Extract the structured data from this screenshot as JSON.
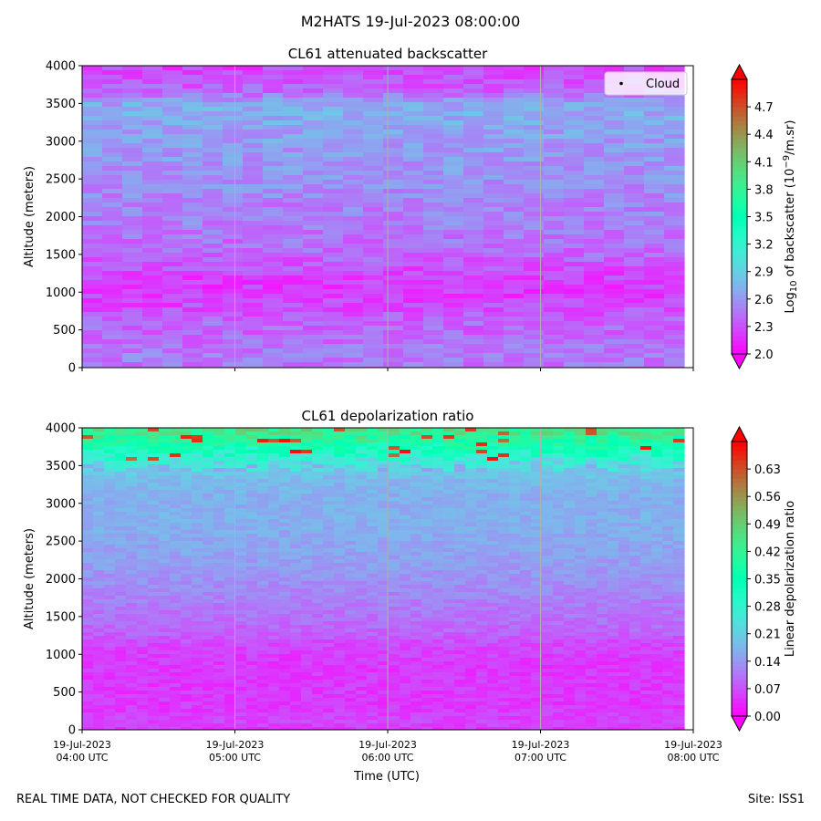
{
  "suptitle": "M2HATS 19-Jul-2023 08:00:00",
  "footer": {
    "quality_note": "REAL TIME DATA, NOT CHECKED FOR QUALITY",
    "site": "Site: ISS1"
  },
  "chart_data": [
    {
      "type": "heatmap",
      "title": "CL61 attenuated backscatter",
      "xlabel": "",
      "ylabel": "Altitude (meters)",
      "ylim": [
        0,
        4000
      ],
      "yticks": [
        0,
        500,
        1000,
        1500,
        2000,
        2500,
        3000,
        3500,
        4000
      ],
      "xlim_hours_utc": [
        4.0,
        8.0
      ],
      "colorbar": {
        "label_prefix": "Log",
        "label_sub": "10",
        "label_mid": " of backscatter (10",
        "label_sup": "−9",
        "label_suffix": "/m.sr)",
        "range": [
          2.0,
          5.0
        ],
        "ticks": [
          "2.0",
          "2.3",
          "2.6",
          "2.9",
          "3.2",
          "3.5",
          "3.8",
          "4.1",
          "4.4",
          "4.7"
        ],
        "tick_values": [
          2.0,
          2.3,
          2.6,
          2.9,
          3.2,
          3.5,
          3.8,
          4.1,
          4.4,
          4.7
        ],
        "extend": "both",
        "colormap": "rainbow"
      },
      "legend": {
        "entries": [
          "Cloud"
        ],
        "location": "top-right",
        "marker": "black-dot"
      },
      "grid": "vertical",
      "profile": {
        "altitude_m": [
          0,
          150,
          300,
          450,
          600,
          750,
          900,
          1050,
          1200,
          1350,
          1500,
          1700,
          1900,
          2100,
          2300,
          2500,
          2700,
          2900,
          3100,
          3300,
          3450,
          3550,
          3650,
          3750,
          3850,
          4000
        ],
        "value": [
          2.45,
          2.5,
          2.45,
          2.4,
          2.4,
          2.3,
          2.25,
          2.22,
          2.25,
          2.32,
          2.4,
          2.45,
          2.5,
          2.5,
          2.55,
          2.58,
          2.6,
          2.62,
          2.65,
          2.7,
          2.72,
          2.6,
          2.4,
          2.35,
          2.3,
          2.25
        ]
      }
    },
    {
      "type": "heatmap",
      "title": "CL61 depolarization ratio",
      "xlabel": "Time (UTC)",
      "ylabel": "Altitude (meters)",
      "ylim": [
        0,
        4000
      ],
      "yticks": [
        0,
        500,
        1000,
        1500,
        2000,
        2500,
        3000,
        3500,
        4000
      ],
      "xlim_hours_utc": [
        4.0,
        8.0
      ],
      "xticks": [
        {
          "hour": 4,
          "date": "19-Jul-2023",
          "time": "04:00 UTC"
        },
        {
          "hour": 5,
          "date": "19-Jul-2023",
          "time": "05:00 UTC"
        },
        {
          "hour": 6,
          "date": "19-Jul-2023",
          "time": "06:00 UTC"
        },
        {
          "hour": 7,
          "date": "19-Jul-2023",
          "time": "07:00 UTC"
        },
        {
          "hour": 8,
          "date": "19-Jul-2023",
          "time": "08:00 UTC"
        }
      ],
      "colorbar": {
        "label": "Linear depolarization ratio",
        "range": [
          0.0,
          0.7
        ],
        "ticks": [
          "0.00",
          "0.07",
          "0.14",
          "0.21",
          "0.28",
          "0.35",
          "0.42",
          "0.49",
          "0.56",
          "0.63"
        ],
        "tick_values": [
          0.0,
          0.07,
          0.14,
          0.21,
          0.28,
          0.35,
          0.42,
          0.49,
          0.56,
          0.63
        ],
        "extend": "both",
        "colormap": "rainbow"
      },
      "grid": "vertical",
      "profile": {
        "altitude_m": [
          0,
          100,
          300,
          600,
          900,
          1100,
          1300,
          1600,
          1900,
          2200,
          2500,
          2800,
          3100,
          3300,
          3500,
          3650,
          3800,
          3900,
          4000
        ],
        "value": [
          0.05,
          0.06,
          0.05,
          0.05,
          0.05,
          0.06,
          0.09,
          0.11,
          0.13,
          0.15,
          0.16,
          0.17,
          0.17,
          0.18,
          0.22,
          0.3,
          0.38,
          0.42,
          0.45
        ]
      }
    }
  ]
}
